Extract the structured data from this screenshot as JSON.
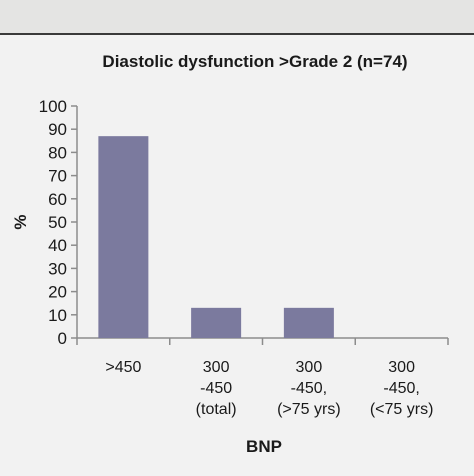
{
  "chart_data": {
    "type": "bar",
    "title": "Diastolic dysfunction >Grade 2 (n=74)",
    "xlabel": "BNP",
    "ylabel": "%",
    "ylim": [
      0,
      100
    ],
    "yticks": [
      0,
      10,
      20,
      30,
      40,
      50,
      60,
      70,
      80,
      90,
      100
    ],
    "categories": [
      [
        ">450"
      ],
      [
        "300",
        "-450",
        "(total)"
      ],
      [
        "300",
        "-450,",
        "(>75 yrs)"
      ],
      [
        "300",
        "-450,",
        "(<75 yrs)"
      ]
    ],
    "values": [
      87,
      13,
      13,
      0
    ],
    "grid": false,
    "legend": "none",
    "bar_color": "#7b7a9e"
  }
}
